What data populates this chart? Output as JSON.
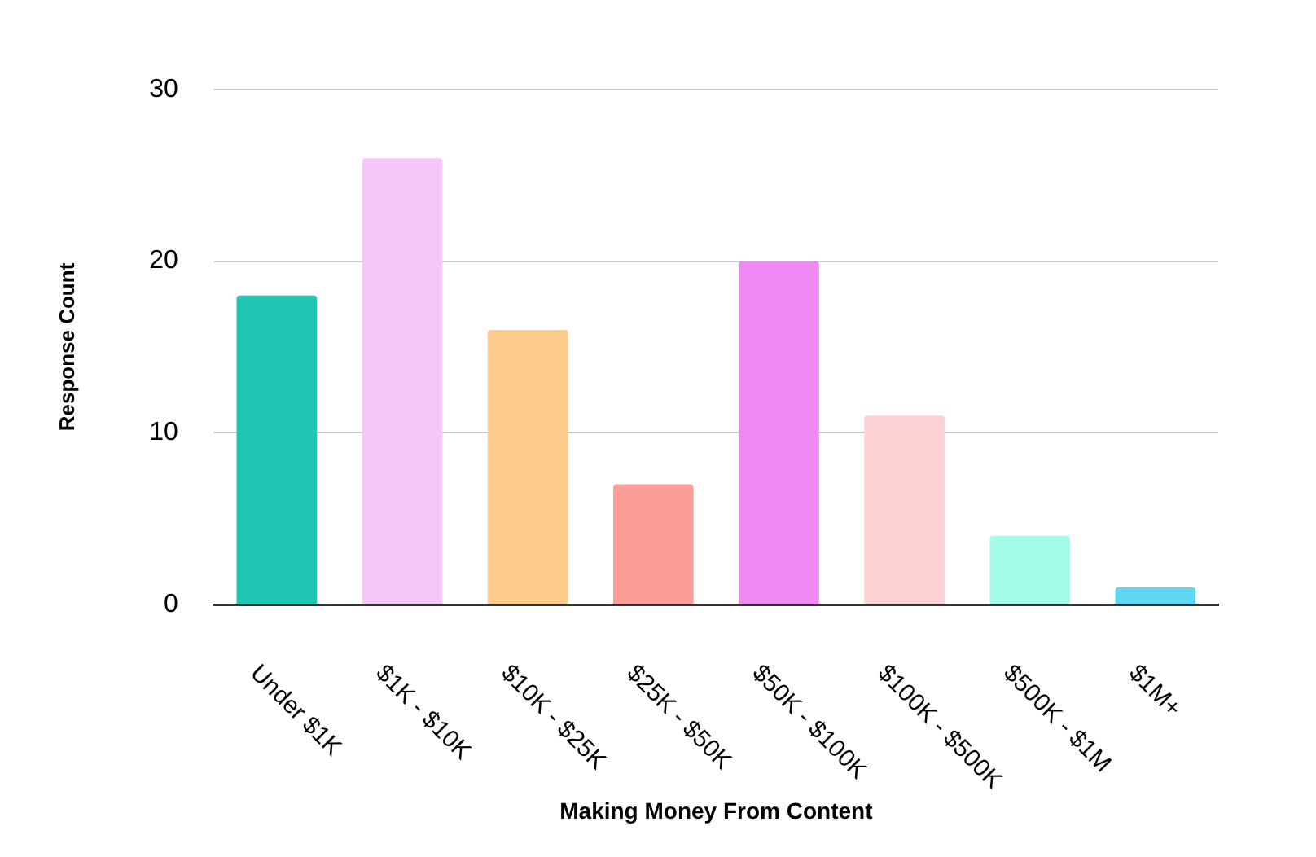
{
  "chart_data": {
    "type": "bar",
    "xlabel": "Making Money From Content",
    "ylabel": "Response Count",
    "categories": [
      "Under $1K",
      "$1K - $10K",
      "$10K - $25K",
      "$25K - $50K",
      "$50K - $100K",
      "$100K - $500K",
      "$500K - $1M",
      "$1M+"
    ],
    "values": [
      18,
      26,
      16,
      7,
      20,
      11,
      4,
      1
    ],
    "colors": [
      "#20c5b3",
      "#f7c6f8",
      "#fecb8c",
      "#fb9e96",
      "#f088f3",
      "#fed1d4",
      "#a4fbe8",
      "#5ed7f0"
    ],
    "ylim": [
      0,
      30
    ],
    "yticks": [
      0,
      10,
      20,
      30
    ],
    "grid": "y"
  }
}
